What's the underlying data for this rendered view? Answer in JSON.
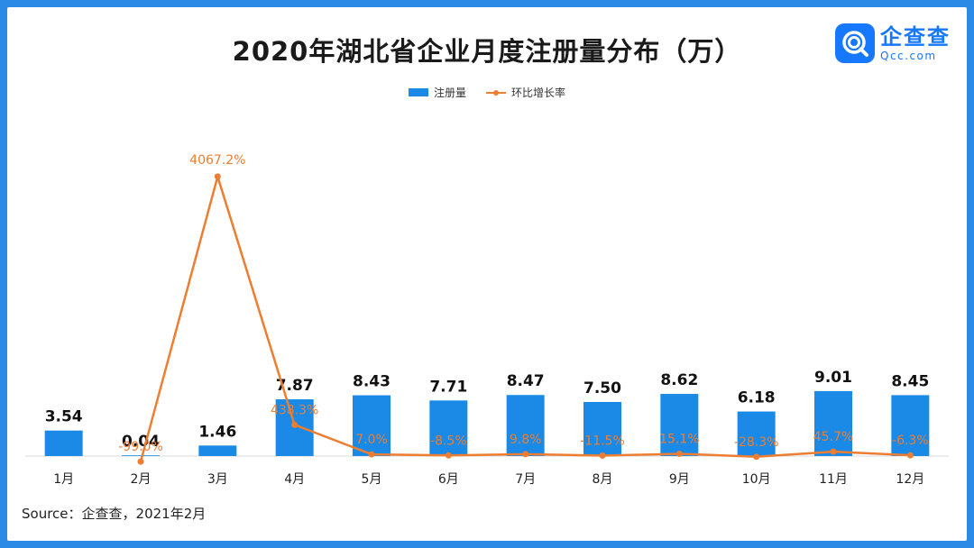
{
  "title": "2020年湖北省企业月度注册量分布（万）",
  "logo": {
    "name_cn": "企查查",
    "domain": "Qcc.com",
    "icon": "q-search-magnifier-icon",
    "color": "#1677ff"
  },
  "source": "Source：企查查，2021年2月",
  "chart_data": {
    "type": "bar",
    "categories": [
      "1月",
      "2月",
      "3月",
      "4月",
      "5月",
      "6月",
      "7月",
      "8月",
      "9月",
      "10月",
      "11月",
      "12月"
    ],
    "series": [
      {
        "name": "注册量",
        "type": "bar",
        "color": "#1a8ae6",
        "values": [
          3.54,
          0.04,
          1.46,
          7.87,
          8.43,
          7.71,
          8.47,
          7.5,
          8.62,
          6.18,
          9.01,
          8.45
        ],
        "labels": [
          "3.54",
          "0.04",
          "1.46",
          "7.87",
          "8.43",
          "7.71",
          "8.47",
          "7.50",
          "8.62",
          "6.18",
          "9.01",
          "8.45"
        ]
      },
      {
        "name": "环比增长率",
        "type": "line",
        "color": "#ed7d31",
        "values": [
          null,
          -99.0,
          4067.2,
          438.3,
          7.0,
          -8.5,
          9.8,
          -11.5,
          15.1,
          -28.3,
          45.7,
          -6.3
        ],
        "labels": [
          "",
          "-99.0%",
          "4067.2%",
          "438.3%",
          "7.0%",
          "-8.5%",
          "9.8%",
          "-11.5%",
          "15.1%",
          "-28.3%",
          "45.7%",
          "-6.3%"
        ]
      }
    ],
    "legend_position": "top-center",
    "grid": false,
    "bar_ylim": [
      0,
      32
    ],
    "line_ylim": [
      -150,
      4500
    ]
  }
}
